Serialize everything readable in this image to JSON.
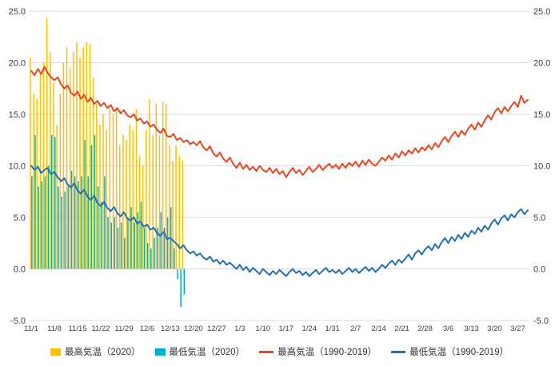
{
  "chart_data": {
    "type": "combo",
    "subtype": "clustered-bar-plus-line",
    "title": "",
    "xlabel": "",
    "ylabel": "",
    "ylim": [
      -5,
      25
    ],
    "x_count": 151,
    "grid": true,
    "grid_color": "#d9d9d9",
    "axis_text_color": "#404040",
    "background_color": "#ffffff",
    "legend_position": "bottom",
    "yticks": {
      "values": [
        25,
        20,
        15,
        10,
        5,
        0,
        -5
      ],
      "labels": [
        "25.0",
        "20.0",
        "15.0",
        "10.0",
        "5.0",
        "0.0",
        "-5.0"
      ]
    },
    "xticks": {
      "labels": [
        "11/1",
        "11/8",
        "11/15",
        "11/22",
        "11/29",
        "12/6",
        "12/13",
        "12/20",
        "12/27",
        "1/3",
        "1/10",
        "1/17",
        "1/24",
        "1/31",
        "2/7",
        "2/14",
        "2/21",
        "2/28",
        "3/6",
        "3/13",
        "3/20",
        "3/27"
      ],
      "day_indices": [
        0,
        7,
        14,
        21,
        28,
        35,
        42,
        49,
        56,
        63,
        70,
        77,
        84,
        91,
        98,
        105,
        112,
        119,
        126,
        133,
        140,
        147
      ]
    },
    "bar_series": [
      {
        "name": "最高気温（2020）",
        "color": "#FFC000",
        "start_index": 0,
        "values": [
          20.5,
          17.0,
          16.5,
          19.0,
          20.0,
          24.3,
          21.0,
          18.0,
          14.0,
          17.0,
          20.0,
          21.5,
          19.5,
          21.0,
          22.0,
          20.5,
          21.5,
          22.0,
          21.8,
          18.5,
          16.0,
          14.0,
          15.0,
          13.5,
          15.5,
          15.0,
          15.5,
          12.0,
          13.0,
          12.5,
          14.0,
          13.5,
          15.5,
          11.0,
          10.0,
          13.5,
          16.5,
          13.0,
          16.0,
          13.0,
          16.2,
          16.0,
          12.0,
          10.5,
          12.0,
          11.0,
          10.5
        ]
      },
      {
        "name": "最低気温（2020）",
        "color": "#00AFCB",
        "start_index": 0,
        "values": [
          9.0,
          13.0,
          8.0,
          8.5,
          9.0,
          10.0,
          13.0,
          12.8,
          8.0,
          7.0,
          7.5,
          8.0,
          9.5,
          9.0,
          8.5,
          9.0,
          12.5,
          9.0,
          12.0,
          13.0,
          8.0,
          6.5,
          9.0,
          5.0,
          4.5,
          5.0,
          4.0,
          4.5,
          3.0,
          5.0,
          6.0,
          4.5,
          5.5,
          6.5,
          4.0,
          2.5,
          2.0,
          3.0,
          4.0,
          5.5,
          4.0,
          5.0,
          6.0,
          2.0,
          -1.0,
          -3.7,
          -2.5
        ]
      }
    ],
    "line_series": [
      {
        "name": "最高気温（1990-2019）",
        "color": "#E8461F",
        "width": 2,
        "values": [
          19.2,
          18.8,
          19.4,
          18.9,
          19.6,
          19.0,
          18.6,
          18.3,
          18.6,
          17.9,
          17.5,
          17.8,
          17.1,
          16.8,
          17.2,
          16.5,
          16.9,
          16.2,
          16.6,
          16.0,
          16.3,
          15.8,
          16.1,
          15.6,
          15.9,
          15.3,
          15.6,
          15.1,
          15.4,
          14.9,
          14.7,
          15.0,
          14.4,
          14.6,
          14.1,
          14.3,
          13.8,
          14.0,
          13.5,
          13.2,
          13.6,
          12.9,
          12.8,
          13.1,
          12.5,
          12.7,
          12.3,
          12.5,
          12.1,
          12.3,
          12.0,
          12.4,
          11.8,
          11.5,
          11.9,
          11.2,
          10.9,
          11.3,
          10.7,
          10.4,
          10.8,
          10.2,
          9.8,
          10.3,
          9.7,
          10.1,
          9.6,
          9.9,
          9.5,
          10.0,
          9.6,
          9.4,
          9.8,
          9.3,
          9.7,
          9.2,
          9.5,
          8.9,
          9.4,
          9.8,
          9.3,
          9.6,
          9.1,
          9.5,
          9.9,
          9.4,
          9.7,
          10.1,
          9.6,
          9.9,
          10.2,
          9.8,
          10.1,
          9.7,
          10.2,
          9.8,
          10.3,
          10.0,
          10.4,
          9.9,
          10.5,
          10.1,
          10.6,
          10.2,
          10.0,
          10.4,
          10.8,
          10.5,
          11.0,
          10.6,
          11.2,
          10.8,
          11.4,
          11.0,
          11.5,
          11.2,
          11.7,
          11.3,
          11.8,
          11.5,
          12.0,
          11.6,
          12.2,
          11.8,
          12.4,
          12.8,
          12.3,
          12.9,
          13.3,
          12.8,
          13.4,
          13.0,
          13.6,
          14.0,
          13.5,
          14.2,
          13.8,
          14.4,
          14.9,
          14.5,
          15.2,
          15.6,
          15.1,
          15.7,
          15.3,
          15.8,
          16.2,
          15.7,
          16.8,
          16.1,
          16.4
        ]
      },
      {
        "name": "最低気温（1990-2019）",
        "color": "#2470B3",
        "width": 2,
        "values": [
          10.0,
          9.6,
          9.9,
          9.3,
          9.6,
          9.8,
          9.2,
          9.4,
          8.9,
          8.5,
          8.8,
          8.2,
          7.9,
          8.3,
          7.6,
          7.3,
          7.7,
          7.0,
          6.7,
          7.1,
          6.4,
          6.1,
          6.5,
          5.9,
          5.6,
          6.0,
          5.4,
          5.1,
          5.5,
          4.9,
          4.7,
          5.0,
          4.4,
          4.6,
          4.1,
          4.3,
          3.8,
          4.0,
          3.5,
          3.2,
          3.6,
          2.9,
          3.0,
          2.7,
          2.4,
          2.0,
          2.3,
          1.8,
          1.5,
          1.7,
          1.3,
          1.5,
          1.1,
          0.9,
          1.2,
          0.7,
          0.9,
          0.5,
          0.8,
          0.4,
          0.6,
          0.3,
          0.0,
          0.4,
          -0.1,
          0.2,
          -0.3,
          0.1,
          -0.2,
          -0.5,
          0.0,
          -0.3,
          -0.6,
          -0.2,
          -0.5,
          -0.1,
          -0.4,
          -0.7,
          -0.3,
          0.0,
          -0.4,
          -0.2,
          -0.6,
          -0.3,
          -0.7,
          -0.4,
          -0.1,
          -0.5,
          -0.2,
          0.1,
          -0.3,
          -0.1,
          -0.4,
          -0.1,
          -0.5,
          -0.2,
          0.1,
          -0.3,
          0.0,
          -0.4,
          -0.1,
          0.2,
          -0.2,
          0.1,
          -0.3,
          0.0,
          0.4,
          0.1,
          0.5,
          0.8,
          0.4,
          0.9,
          0.6,
          1.0,
          1.4,
          0.9,
          1.5,
          1.8,
          1.4,
          1.9,
          2.2,
          1.8,
          2.4,
          2.0,
          2.6,
          3.0,
          2.5,
          3.1,
          2.7,
          3.3,
          2.9,
          3.5,
          3.1,
          3.7,
          3.4,
          4.0,
          3.6,
          4.2,
          3.8,
          4.4,
          4.8,
          4.3,
          4.9,
          5.2,
          4.7,
          5.3,
          5.0,
          5.5,
          5.8,
          5.3,
          5.7
        ]
      }
    ]
  }
}
